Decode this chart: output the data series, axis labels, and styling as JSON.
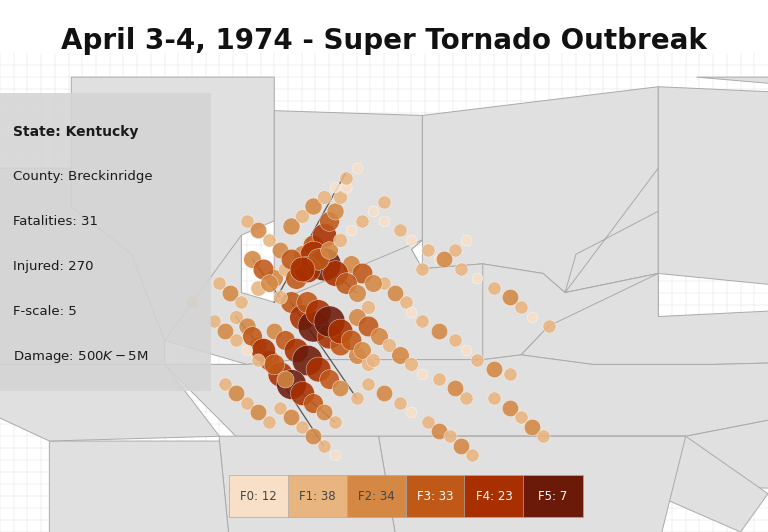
{
  "title": "April 3-4, 1974 - Super Tornado Outbreak",
  "title_fontsize": 20,
  "background_color": "#ffffff",
  "map_bg": "#e8e8e8",
  "info_box": {
    "lines": [
      {
        "text": "State: Kentucky",
        "bold": true
      },
      {
        "text": "County: Breckinridge",
        "bold": false
      },
      {
        "text": "Fatalities: 31",
        "bold": false
      },
      {
        "text": "Injured: 270",
        "bold": false
      },
      {
        "text": "F-scale: 5",
        "bold": false
      },
      {
        "text": "Damage: $500K-$5M",
        "bold": false
      }
    ],
    "bg_color": "#d4d4d4",
    "alpha": 0.88
  },
  "legend": [
    {
      "label": "F0: 12",
      "color": "#f7dfc8",
      "text_color": "#444444"
    },
    {
      "label": "F1: 38",
      "color": "#e8b480",
      "text_color": "#444444"
    },
    {
      "label": "F2: 34",
      "color": "#d48844",
      "text_color": "#444444"
    },
    {
      "label": "F3: 33",
      "color": "#c05818",
      "text_color": "#ffffff"
    },
    {
      "label": "F4: 23",
      "color": "#a83000",
      "text_color": "#ffffff"
    },
    {
      "label": "F5: 7",
      "color": "#6b1a0a",
      "text_color": "#ffffff"
    }
  ],
  "f_colors": [
    "#f7dfc8",
    "#e8b480",
    "#d48844",
    "#c05818",
    "#a83000",
    "#6b1a0a"
  ],
  "map_extent": [
    -92.5,
    -78.5,
    33.0,
    43.0
  ],
  "state_line_color": "#aaaaaa",
  "county_line_color": "#cccccc",
  "track_color": "#333333",
  "tornadoes": [
    {
      "lon": -87.8,
      "lat": 38.1,
      "f": 1,
      "size": 120
    },
    {
      "lon": -87.5,
      "lat": 38.3,
      "f": 2,
      "size": 160
    },
    {
      "lon": -87.3,
      "lat": 38.5,
      "f": 1,
      "size": 100
    },
    {
      "lon": -87.0,
      "lat": 38.8,
      "f": 2,
      "size": 160
    },
    {
      "lon": -86.8,
      "lat": 39.0,
      "f": 3,
      "size": 220
    },
    {
      "lon": -86.6,
      "lat": 39.2,
      "f": 4,
      "size": 300
    },
    {
      "lon": -86.5,
      "lat": 39.5,
      "f": 3,
      "size": 200
    },
    {
      "lon": -86.4,
      "lat": 39.7,
      "f": 2,
      "size": 150
    },
    {
      "lon": -86.3,
      "lat": 40.0,
      "f": 1,
      "size": 100
    },
    {
      "lon": -86.2,
      "lat": 40.2,
      "f": 0,
      "size": 70
    },
    {
      "lon": -87.2,
      "lat": 37.8,
      "f": 3,
      "size": 240
    },
    {
      "lon": -87.0,
      "lat": 37.5,
      "f": 4,
      "size": 340
    },
    {
      "lon": -86.8,
      "lat": 37.3,
      "f": 5,
      "size": 500
    },
    {
      "lon": -86.5,
      "lat": 37.1,
      "f": 4,
      "size": 320
    },
    {
      "lon": -86.3,
      "lat": 36.9,
      "f": 3,
      "size": 220
    },
    {
      "lon": -86.0,
      "lat": 36.7,
      "f": 2,
      "size": 160
    },
    {
      "lon": -85.8,
      "lat": 36.5,
      "f": 1,
      "size": 100
    },
    {
      "lon": -87.5,
      "lat": 37.2,
      "f": 2,
      "size": 140
    },
    {
      "lon": -87.3,
      "lat": 37.0,
      "f": 3,
      "size": 200
    },
    {
      "lon": -87.1,
      "lat": 36.8,
      "f": 4,
      "size": 300
    },
    {
      "lon": -86.9,
      "lat": 36.6,
      "f": 5,
      "size": 480
    },
    {
      "lon": -86.7,
      "lat": 36.4,
      "f": 4,
      "size": 320
    },
    {
      "lon": -86.5,
      "lat": 36.2,
      "f": 3,
      "size": 200
    },
    {
      "lon": -86.3,
      "lat": 36.0,
      "f": 2,
      "size": 140
    },
    {
      "lon": -86.0,
      "lat": 35.8,
      "f": 1,
      "size": 90
    },
    {
      "lon": -87.8,
      "lat": 36.9,
      "f": 2,
      "size": 150
    },
    {
      "lon": -87.6,
      "lat": 36.6,
      "f": 3,
      "size": 220
    },
    {
      "lon": -87.4,
      "lat": 36.3,
      "f": 4,
      "size": 320
    },
    {
      "lon": -87.2,
      "lat": 36.1,
      "f": 5,
      "size": 460
    },
    {
      "lon": -87.0,
      "lat": 35.9,
      "f": 4,
      "size": 300
    },
    {
      "lon": -86.8,
      "lat": 35.7,
      "f": 3,
      "size": 200
    },
    {
      "lon": -86.6,
      "lat": 35.5,
      "f": 2,
      "size": 140
    },
    {
      "lon": -86.4,
      "lat": 35.3,
      "f": 1,
      "size": 90
    },
    {
      "lon": -88.2,
      "lat": 37.5,
      "f": 1,
      "size": 100
    },
    {
      "lon": -88.0,
      "lat": 37.3,
      "f": 2,
      "size": 150
    },
    {
      "lon": -87.9,
      "lat": 37.1,
      "f": 3,
      "size": 200
    },
    {
      "lon": -87.7,
      "lat": 36.8,
      "f": 4,
      "size": 300
    },
    {
      "lon": -87.5,
      "lat": 36.5,
      "f": 3,
      "size": 220
    },
    {
      "lon": -87.3,
      "lat": 36.2,
      "f": 2,
      "size": 150
    },
    {
      "lon": -85.5,
      "lat": 38.2,
      "f": 1,
      "size": 90
    },
    {
      "lon": -85.3,
      "lat": 38.0,
      "f": 2,
      "size": 140
    },
    {
      "lon": -85.1,
      "lat": 37.8,
      "f": 1,
      "size": 90
    },
    {
      "lon": -85.0,
      "lat": 37.6,
      "f": 0,
      "size": 60
    },
    {
      "lon": -84.8,
      "lat": 37.4,
      "f": 1,
      "size": 90
    },
    {
      "lon": -84.5,
      "lat": 37.2,
      "f": 2,
      "size": 140
    },
    {
      "lon": -84.2,
      "lat": 37.0,
      "f": 1,
      "size": 90
    },
    {
      "lon": -84.0,
      "lat": 36.8,
      "f": 0,
      "size": 60
    },
    {
      "lon": -83.8,
      "lat": 36.6,
      "f": 1,
      "size": 90
    },
    {
      "lon": -83.5,
      "lat": 36.4,
      "f": 2,
      "size": 140
    },
    {
      "lon": -83.2,
      "lat": 36.3,
      "f": 1,
      "size": 90
    },
    {
      "lon": -85.8,
      "lat": 36.1,
      "f": 1,
      "size": 90
    },
    {
      "lon": -85.5,
      "lat": 35.9,
      "f": 2,
      "size": 140
    },
    {
      "lon": -85.2,
      "lat": 35.7,
      "f": 1,
      "size": 90
    },
    {
      "lon": -85.0,
      "lat": 35.5,
      "f": 0,
      "size": 60
    },
    {
      "lon": -84.7,
      "lat": 35.3,
      "f": 1,
      "size": 90
    },
    {
      "lon": -84.5,
      "lat": 35.1,
      "f": 2,
      "size": 140
    },
    {
      "lon": -84.8,
      "lat": 38.5,
      "f": 1,
      "size": 90
    },
    {
      "lon": -84.5,
      "lat": 38.7,
      "f": 0,
      "size": 60
    },
    {
      "lon": -84.2,
      "lat": 38.9,
      "f": 1,
      "size": 90
    },
    {
      "lon": -84.0,
      "lat": 39.1,
      "f": 0,
      "size": 60
    },
    {
      "lon": -86.1,
      "lat": 38.6,
      "f": 2,
      "size": 160
    },
    {
      "lon": -85.9,
      "lat": 38.4,
      "f": 3,
      "size": 220
    },
    {
      "lon": -85.7,
      "lat": 38.2,
      "f": 2,
      "size": 160
    },
    {
      "lon": -86.8,
      "lat": 38.8,
      "f": 4,
      "size": 360
    },
    {
      "lon": -86.6,
      "lat": 38.6,
      "f": 5,
      "size": 560
    },
    {
      "lon": -86.4,
      "lat": 38.4,
      "f": 4,
      "size": 340
    },
    {
      "lon": -86.2,
      "lat": 38.2,
      "f": 3,
      "size": 240
    },
    {
      "lon": -86.0,
      "lat": 38.0,
      "f": 2,
      "size": 160
    },
    {
      "lon": -85.8,
      "lat": 37.7,
      "f": 1,
      "size": 100
    },
    {
      "lon": -87.9,
      "lat": 38.7,
      "f": 2,
      "size": 160
    },
    {
      "lon": -87.7,
      "lat": 38.5,
      "f": 3,
      "size": 220
    },
    {
      "lon": -87.6,
      "lat": 38.2,
      "f": 2,
      "size": 160
    },
    {
      "lon": -87.4,
      "lat": 37.9,
      "f": 1,
      "size": 100
    },
    {
      "lon": -88.5,
      "lat": 38.2,
      "f": 1,
      "size": 90
    },
    {
      "lon": -88.3,
      "lat": 38.0,
      "f": 2,
      "size": 140
    },
    {
      "lon": -88.1,
      "lat": 37.8,
      "f": 1,
      "size": 90
    },
    {
      "lon": -85.5,
      "lat": 39.5,
      "f": 0,
      "size": 60
    },
    {
      "lon": -85.2,
      "lat": 39.3,
      "f": 1,
      "size": 90
    },
    {
      "lon": -85.0,
      "lat": 39.1,
      "f": 0,
      "size": 60
    },
    {
      "lon": -84.7,
      "lat": 38.9,
      "f": 1,
      "size": 90
    },
    {
      "lon": -84.4,
      "lat": 38.7,
      "f": 2,
      "size": 140
    },
    {
      "lon": -84.1,
      "lat": 38.5,
      "f": 1,
      "size": 90
    },
    {
      "lon": -83.8,
      "lat": 38.3,
      "f": 0,
      "size": 60
    },
    {
      "lon": -83.5,
      "lat": 38.1,
      "f": 1,
      "size": 90
    },
    {
      "lon": -83.2,
      "lat": 37.9,
      "f": 2,
      "size": 140
    },
    {
      "lon": -83.0,
      "lat": 37.7,
      "f": 1,
      "size": 90
    },
    {
      "lon": -82.8,
      "lat": 37.5,
      "f": 0,
      "size": 60
    },
    {
      "lon": -82.5,
      "lat": 37.3,
      "f": 1,
      "size": 90
    },
    {
      "lon": -86.9,
      "lat": 37.8,
      "f": 3,
      "size": 240
    },
    {
      "lon": -86.7,
      "lat": 37.6,
      "f": 4,
      "size": 340
    },
    {
      "lon": -86.5,
      "lat": 37.4,
      "f": 5,
      "size": 500
    },
    {
      "lon": -86.3,
      "lat": 37.2,
      "f": 4,
      "size": 320
    },
    {
      "lon": -86.1,
      "lat": 37.0,
      "f": 3,
      "size": 220
    },
    {
      "lon": -85.9,
      "lat": 36.8,
      "f": 2,
      "size": 160
    },
    {
      "lon": -85.7,
      "lat": 36.6,
      "f": 1,
      "size": 100
    },
    {
      "lon": -87.1,
      "lat": 38.3,
      "f": 3,
      "size": 240
    },
    {
      "lon": -86.9,
      "lat": 38.5,
      "f": 4,
      "size": 360
    },
    {
      "lon": -86.7,
      "lat": 38.7,
      "f": 3,
      "size": 240
    },
    {
      "lon": -86.5,
      "lat": 38.9,
      "f": 2,
      "size": 160
    },
    {
      "lon": -86.3,
      "lat": 39.1,
      "f": 1,
      "size": 100
    },
    {
      "lon": -86.1,
      "lat": 39.3,
      "f": 0,
      "size": 60
    },
    {
      "lon": -85.9,
      "lat": 39.5,
      "f": 1,
      "size": 90
    },
    {
      "lon": -85.7,
      "lat": 39.7,
      "f": 0,
      "size": 60
    },
    {
      "lon": -85.5,
      "lat": 39.9,
      "f": 1,
      "size": 90
    },
    {
      "lon": -87.2,
      "lat": 39.4,
      "f": 2,
      "size": 150
    },
    {
      "lon": -87.0,
      "lat": 39.6,
      "f": 1,
      "size": 100
    },
    {
      "lon": -86.8,
      "lat": 39.8,
      "f": 2,
      "size": 150
    },
    {
      "lon": -86.6,
      "lat": 40.0,
      "f": 1,
      "size": 100
    },
    {
      "lon": -86.4,
      "lat": 40.2,
      "f": 0,
      "size": 60
    },
    {
      "lon": -86.2,
      "lat": 40.4,
      "f": 1,
      "size": 90
    },
    {
      "lon": -86.0,
      "lat": 40.6,
      "f": 0,
      "size": 60
    },
    {
      "lon": -88.0,
      "lat": 39.5,
      "f": 1,
      "size": 90
    },
    {
      "lon": -87.8,
      "lat": 39.3,
      "f": 2,
      "size": 140
    },
    {
      "lon": -87.6,
      "lat": 39.1,
      "f": 1,
      "size": 90
    },
    {
      "lon": -87.4,
      "lat": 38.9,
      "f": 2,
      "size": 140
    },
    {
      "lon": -87.2,
      "lat": 38.7,
      "f": 3,
      "size": 220
    },
    {
      "lon": -87.0,
      "lat": 38.5,
      "f": 4,
      "size": 320
    },
    {
      "lon": -86.0,
      "lat": 37.5,
      "f": 2,
      "size": 160
    },
    {
      "lon": -85.8,
      "lat": 37.3,
      "f": 3,
      "size": 220
    },
    {
      "lon": -85.6,
      "lat": 37.1,
      "f": 2,
      "size": 160
    },
    {
      "lon": -85.4,
      "lat": 36.9,
      "f": 1,
      "size": 100
    },
    {
      "lon": -85.2,
      "lat": 36.7,
      "f": 2,
      "size": 160
    },
    {
      "lon": -85.0,
      "lat": 36.5,
      "f": 1,
      "size": 100
    },
    {
      "lon": -84.8,
      "lat": 36.3,
      "f": 0,
      "size": 60
    },
    {
      "lon": -87.4,
      "lat": 35.6,
      "f": 1,
      "size": 90
    },
    {
      "lon": -87.2,
      "lat": 35.4,
      "f": 2,
      "size": 140
    },
    {
      "lon": -87.0,
      "lat": 35.2,
      "f": 1,
      "size": 90
    },
    {
      "lon": -86.8,
      "lat": 35.0,
      "f": 2,
      "size": 140
    },
    {
      "lon": -86.6,
      "lat": 34.8,
      "f": 1,
      "size": 90
    },
    {
      "lon": -86.4,
      "lat": 34.6,
      "f": 0,
      "size": 60
    },
    {
      "lon": -88.4,
      "lat": 36.1,
      "f": 1,
      "size": 90
    },
    {
      "lon": -88.2,
      "lat": 35.9,
      "f": 2,
      "size": 140
    },
    {
      "lon": -88.0,
      "lat": 35.7,
      "f": 1,
      "size": 90
    },
    {
      "lon": -87.8,
      "lat": 35.5,
      "f": 2,
      "size": 140
    },
    {
      "lon": -87.6,
      "lat": 35.3,
      "f": 1,
      "size": 90
    },
    {
      "lon": -89.0,
      "lat": 37.8,
      "f": 1,
      "size": 90
    },
    {
      "lon": -88.8,
      "lat": 37.6,
      "f": 0,
      "size": 60
    },
    {
      "lon": -88.6,
      "lat": 37.4,
      "f": 1,
      "size": 90
    },
    {
      "lon": -88.4,
      "lat": 37.2,
      "f": 2,
      "size": 140
    },
    {
      "lon": -88.2,
      "lat": 37.0,
      "f": 1,
      "size": 90
    },
    {
      "lon": -88.0,
      "lat": 36.8,
      "f": 0,
      "size": 60
    },
    {
      "lon": -87.8,
      "lat": 36.6,
      "f": 1,
      "size": 90
    },
    {
      "lon": -83.5,
      "lat": 35.8,
      "f": 1,
      "size": 90
    },
    {
      "lon": -83.2,
      "lat": 35.6,
      "f": 2,
      "size": 140
    },
    {
      "lon": -83.0,
      "lat": 35.4,
      "f": 1,
      "size": 90
    },
    {
      "lon": -82.8,
      "lat": 35.2,
      "f": 2,
      "size": 140
    },
    {
      "lon": -82.6,
      "lat": 35.0,
      "f": 1,
      "size": 90
    },
    {
      "lon": -84.3,
      "lat": 35.0,
      "f": 1,
      "size": 90
    },
    {
      "lon": -84.1,
      "lat": 34.8,
      "f": 2,
      "size": 140
    },
    {
      "lon": -83.9,
      "lat": 34.6,
      "f": 1,
      "size": 90
    },
    {
      "lon": -84.5,
      "lat": 36.2,
      "f": 1,
      "size": 90
    },
    {
      "lon": -84.2,
      "lat": 36.0,
      "f": 2,
      "size": 140
    },
    {
      "lon": -84.0,
      "lat": 35.8,
      "f": 1,
      "size": 90
    }
  ],
  "track_lines": [
    [
      [
        -87.5,
        37.8
      ],
      [
        -86.2,
        40.5
      ]
    ],
    [
      [
        -87.4,
        36.3
      ],
      [
        -86.4,
        35.3
      ]
    ],
    [
      [
        -87.8,
        36.9
      ],
      [
        -86.6,
        34.8
      ]
    ],
    [
      [
        -88.2,
        37.5
      ],
      [
        -87.3,
        36.2
      ]
    ],
    [
      [
        -87.2,
        37.8
      ],
      [
        -86.0,
        35.8
      ]
    ],
    [
      [
        -86.8,
        38.8
      ],
      [
        -86.0,
        38.0
      ]
    ],
    [
      [
        -87.9,
        38.7
      ],
      [
        -87.4,
        37.9
      ]
    ]
  ]
}
